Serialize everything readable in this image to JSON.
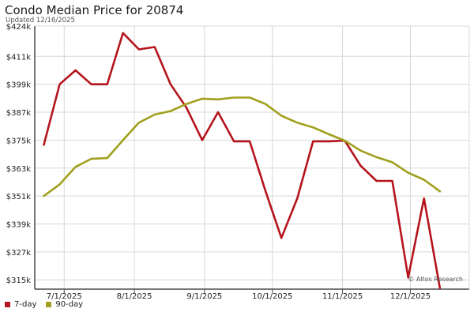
{
  "header": {
    "title": "Condo Median Price for 20874",
    "subtitle": "Updated 12/16/2025"
  },
  "colors": {
    "series_7day": "#b5141c",
    "series_90day": "#a0a01e",
    "grid": "#d8d8d8",
    "axis": "#4a4a4a"
  },
  "watermark": "© Altos Research",
  "chart_data": {
    "type": "line",
    "title": "Condo Median Price for 20874",
    "xlabel": "",
    "ylabel": "",
    "ylim": [
      311000,
      424000
    ],
    "xlim": [
      "2025-06-18",
      "2025-12-27"
    ],
    "y_ticks": [
      {
        "value": 315000,
        "label": "$315k"
      },
      {
        "value": 327000,
        "label": "$327k"
      },
      {
        "value": 339000,
        "label": "$339k"
      },
      {
        "value": 351000,
        "label": "$351k"
      },
      {
        "value": 363000,
        "label": "$363k"
      },
      {
        "value": 375000,
        "label": "$375k"
      },
      {
        "value": 387000,
        "label": "$387k"
      },
      {
        "value": 399000,
        "label": "$399k"
      },
      {
        "value": 411000,
        "label": "$411k"
      },
      {
        "value": 424000,
        "label": "$424k"
      }
    ],
    "x_ticks": [
      {
        "date": "2025-07-01",
        "label": "7/1/2025"
      },
      {
        "date": "2025-08-01",
        "label": "8/1/2025"
      },
      {
        "date": "2025-09-01",
        "label": "9/1/2025"
      },
      {
        "date": "2025-10-01",
        "label": "10/1/2025"
      },
      {
        "date": "2025-11-01",
        "label": "11/1/2025"
      },
      {
        "date": "2025-12-01",
        "label": "12/1/2025"
      }
    ],
    "grid": true,
    "legend": "bottom-left",
    "series": [
      {
        "name": "7-day",
        "color_key": "series_7day",
        "points": [
          [
            "2025-06-22",
            373000
          ],
          [
            "2025-06-29",
            399000
          ],
          [
            "2025-07-06",
            405000
          ],
          [
            "2025-07-13",
            399000
          ],
          [
            "2025-07-20",
            399000
          ],
          [
            "2025-07-27",
            421000
          ],
          [
            "2025-08-03",
            414000
          ],
          [
            "2025-08-10",
            415000
          ],
          [
            "2025-08-17",
            399000
          ],
          [
            "2025-08-24",
            389000
          ],
          [
            "2025-08-31",
            375000
          ],
          [
            "2025-09-07",
            387000
          ],
          [
            "2025-09-14",
            374500
          ],
          [
            "2025-09-21",
            374500
          ],
          [
            "2025-09-28",
            353000
          ],
          [
            "2025-10-05",
            333000
          ],
          [
            "2025-10-12",
            350000
          ],
          [
            "2025-10-19",
            374500
          ],
          [
            "2025-10-26",
            374500
          ],
          [
            "2025-11-02",
            374800
          ],
          [
            "2025-11-09",
            364000
          ],
          [
            "2025-11-16",
            357500
          ],
          [
            "2025-11-23",
            357500
          ],
          [
            "2025-11-30",
            316000
          ],
          [
            "2025-12-07",
            350000
          ],
          [
            "2025-12-14",
            311500
          ]
        ]
      },
      {
        "name": "90-day",
        "color_key": "series_90day",
        "points": [
          [
            "2025-06-22",
            351000
          ],
          [
            "2025-06-29",
            356000
          ],
          [
            "2025-07-06",
            363500
          ],
          [
            "2025-07-13",
            367000
          ],
          [
            "2025-07-20",
            367300
          ],
          [
            "2025-07-27",
            375000
          ],
          [
            "2025-08-03",
            382500
          ],
          [
            "2025-08-10",
            386000
          ],
          [
            "2025-08-17",
            387500
          ],
          [
            "2025-08-24",
            390500
          ],
          [
            "2025-08-31",
            392800
          ],
          [
            "2025-09-07",
            392500
          ],
          [
            "2025-09-14",
            393300
          ],
          [
            "2025-09-21",
            393300
          ],
          [
            "2025-09-28",
            390500
          ],
          [
            "2025-10-05",
            385500
          ],
          [
            "2025-10-12",
            382500
          ],
          [
            "2025-10-19",
            380500
          ],
          [
            "2025-10-26",
            377500
          ],
          [
            "2025-11-02",
            374800
          ],
          [
            "2025-11-09",
            370500
          ],
          [
            "2025-11-16",
            367700
          ],
          [
            "2025-11-23",
            365500
          ],
          [
            "2025-11-30",
            361000
          ],
          [
            "2025-12-07",
            358000
          ],
          [
            "2025-12-14",
            353000
          ]
        ]
      }
    ]
  }
}
